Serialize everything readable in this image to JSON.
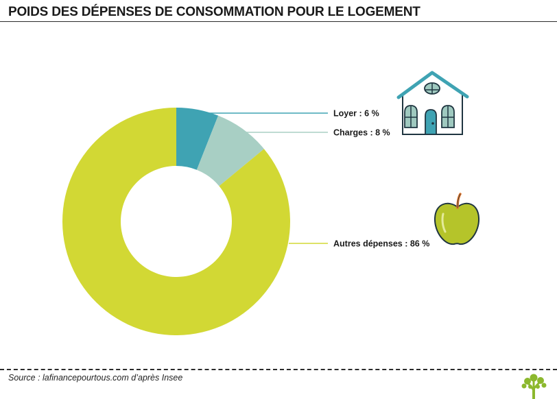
{
  "header": {
    "title": "POIDS DES DÉPENSES DE CONSOMMATION POUR LE LOGEMENT"
  },
  "chart_data": {
    "type": "pie",
    "subtype": "donut",
    "categories": [
      "Loyer",
      "Charges",
      "Autres dépenses"
    ],
    "values": [
      6,
      8,
      86
    ],
    "unit": "%",
    "data_labels": [
      "Loyer : 6 %",
      "Charges : 8 %",
      "Autres dépenses : 86 %"
    ],
    "colors": [
      "#3fa3b3",
      "#a8cfc4",
      "#d2d834"
    ]
  },
  "icons": {
    "house": "house-icon",
    "apple": "apple-icon",
    "brand_tree": "tree-logo-icon"
  },
  "footer": {
    "source": "Source : lafinancepourtous.com d’après Insee"
  }
}
